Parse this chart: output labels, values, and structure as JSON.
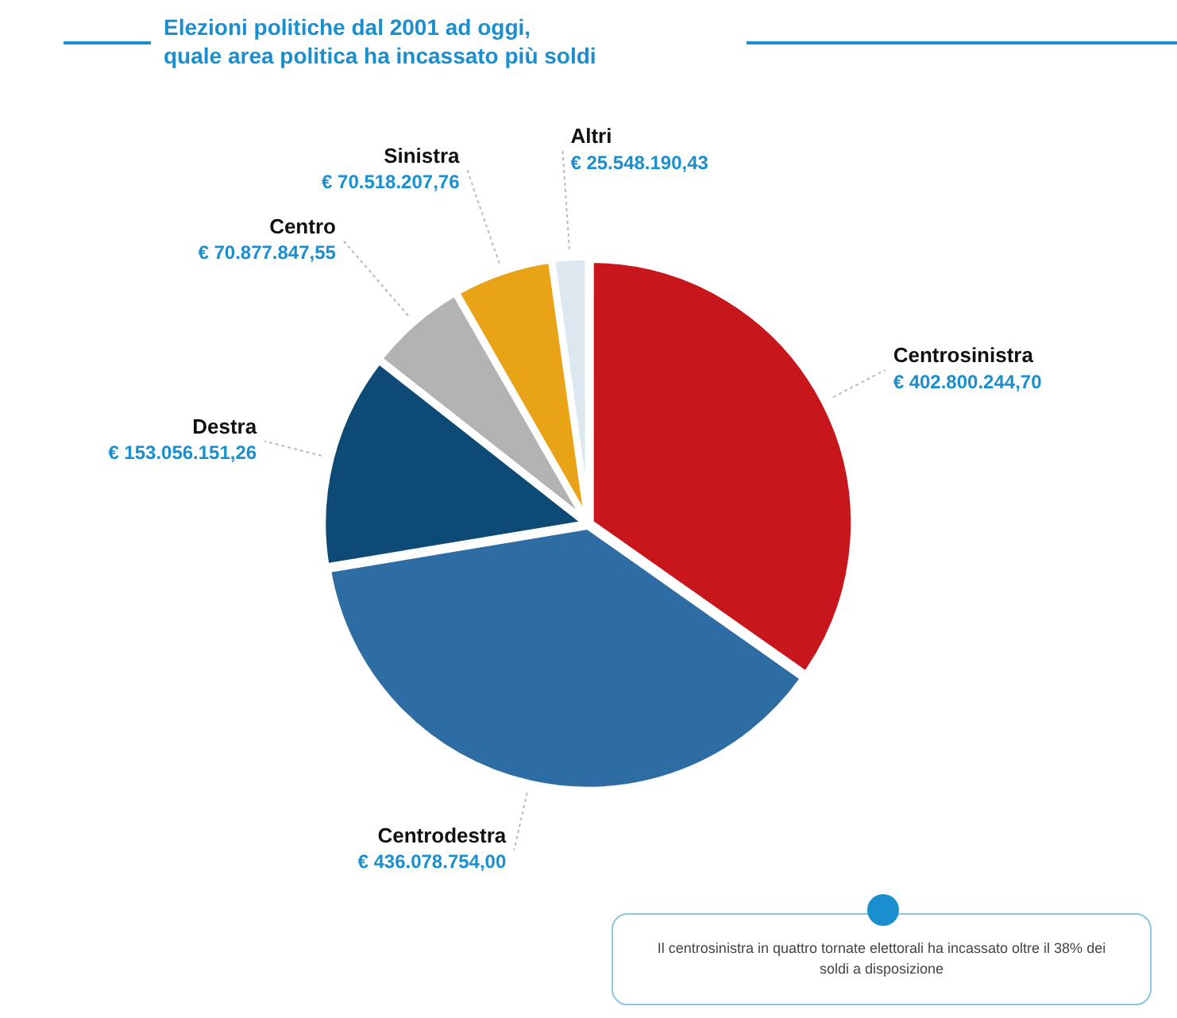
{
  "chart_data": {
    "type": "pie",
    "title": "Elezioni politiche dal 2001 ad oggi,\nquale area politica ha incassato più soldi",
    "categories": [
      "Centrosinistra",
      "Centrodestra",
      "Destra",
      "Centro",
      "Sinistra",
      "Altri"
    ],
    "values": [
      402800244.7,
      436078754.0,
      153056151.26,
      70877847.55,
      70518207.76,
      25548190.43
    ],
    "value_labels": [
      "€ 402.800.244,70",
      "€ 436.078.754,00",
      "€ 153.056.151,26",
      "€ 70.877.847,55",
      "€ 70.518.207,76",
      "€ 25.548.190,43"
    ],
    "colors": [
      "#c8161d",
      "#2e6da4",
      "#0d4a75",
      "#b3b3b3",
      "#e8a317",
      "#dde7f0"
    ],
    "legend": false,
    "annotations": [
      "Il centrosinistra in quattro tornate elettorali ha incassato oltre il 38% dei soldi a disposizione"
    ]
  }
}
